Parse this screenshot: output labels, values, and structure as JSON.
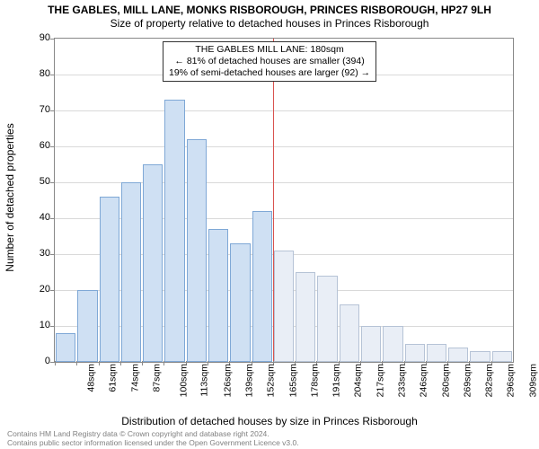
{
  "chart": {
    "type": "histogram",
    "title_main": "THE GABLES, MILL LANE, MONKS RISBOROUGH, PRINCES RISBOROUGH, HP27 9LH",
    "title_sub": "Size of property relative to detached houses in Princes Risborough",
    "title_fontsize": 12,
    "background_color": "#ffffff",
    "grid_color": "#d9d9d9",
    "axis_color": "#888888",
    "y_axis": {
      "label": "Number of detached properties",
      "min": 0,
      "max": 90,
      "tick_step": 10,
      "ticks": [
        0,
        10,
        20,
        30,
        40,
        50,
        60,
        70,
        80,
        90
      ]
    },
    "x_axis": {
      "label": "Distribution of detached houses by size in Princes Risborough",
      "tick_labels": [
        "48sqm",
        "61sqm",
        "74sqm",
        "87sqm",
        "100sqm",
        "113sqm",
        "126sqm",
        "139sqm",
        "152sqm",
        "165sqm",
        "178sqm",
        "191sqm",
        "204sqm",
        "217sqm",
        "233sqm",
        "246sqm",
        "260sqm",
        "269sqm",
        "282sqm",
        "296sqm",
        "309sqm"
      ]
    },
    "bars": {
      "values": [
        8,
        20,
        46,
        50,
        55,
        73,
        62,
        37,
        33,
        42,
        31,
        25,
        24,
        16,
        10,
        10,
        5,
        5,
        4,
        3,
        3
      ],
      "fill_left": "#cfe0f3",
      "fill_right": "#e9eef6",
      "border_left": "#7fa8d6",
      "border_right": "#b6c3d6",
      "width_ratio": 0.92
    },
    "reference_line": {
      "index": 10,
      "color": "#d9534f"
    },
    "info_box": {
      "line1": "THE GABLES MILL LANE: 180sqm",
      "line2": "← 81% of detached houses are smaller (394)",
      "line3": "19% of semi-detached houses are larger (92) →",
      "border_color": "#333333",
      "fontsize": 10.5
    },
    "footer": {
      "line1": "Contains HM Land Registry data © Crown copyright and database right 2024.",
      "line2": "Contains public sector information licensed under the Open Government Licence v3.0.",
      "color": "#808080",
      "fontsize": 8.5
    }
  }
}
